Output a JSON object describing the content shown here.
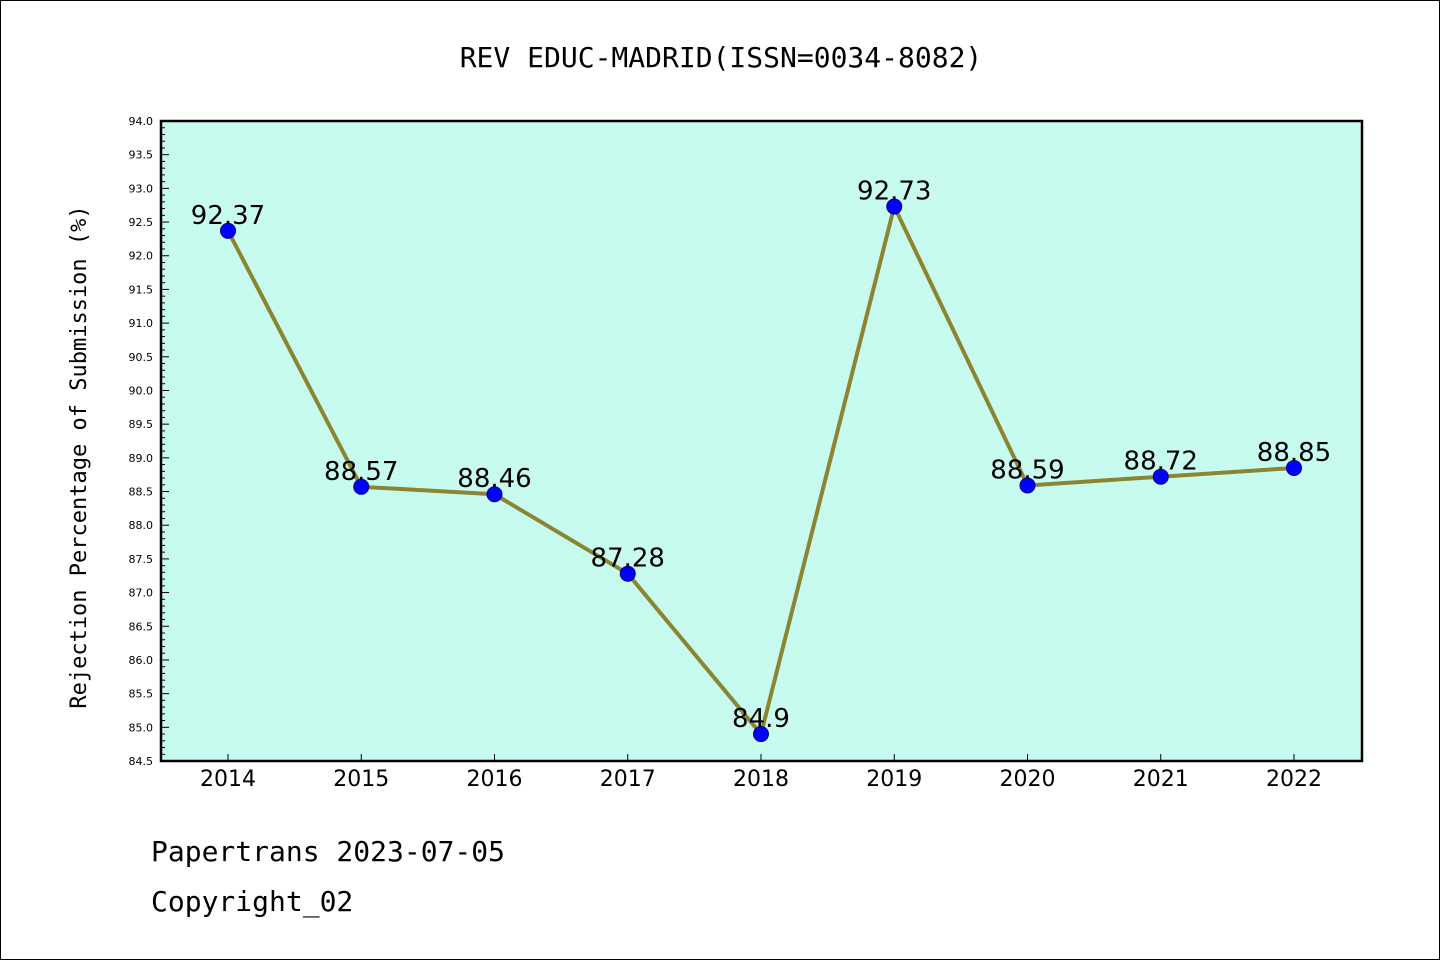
{
  "chart_data": {
    "type": "line",
    "title": "REV EDUC-MADRID(ISSN=0034-8082)",
    "xlabel": "",
    "ylabel": "Rejection Percentage of Submission (%)",
    "categories": [
      "2014",
      "2015",
      "2016",
      "2017",
      "2018",
      "2019",
      "2020",
      "2021",
      "2022"
    ],
    "series": [
      {
        "values": [
          92.37,
          88.57,
          88.46,
          87.28,
          84.9,
          92.73,
          88.59,
          88.72,
          88.85
        ],
        "labels": [
          "92.37",
          "88.57",
          "88.46",
          "87.28",
          "84.9",
          "92.73",
          "88.59",
          "88.72",
          "88.85"
        ]
      }
    ],
    "ylim": [
      84.5,
      94.0
    ],
    "yticks": [
      "84.5",
      "85.0",
      "85.5",
      "86.0",
      "86.5",
      "87.0",
      "87.5",
      "88.0",
      "88.5",
      "89.0",
      "89.5",
      "90.0",
      "90.5",
      "91.0",
      "91.5",
      "92.0",
      "92.5",
      "93.0",
      "93.5",
      "94.0"
    ],
    "grid": false,
    "legend": "none",
    "colors": {
      "plot_background": "#c8fbef",
      "line": "#8b8431",
      "marker": "#0000ff"
    }
  },
  "footer": {
    "line1": "Papertrans 2023-07-05",
    "line2": "Copyright_02"
  }
}
